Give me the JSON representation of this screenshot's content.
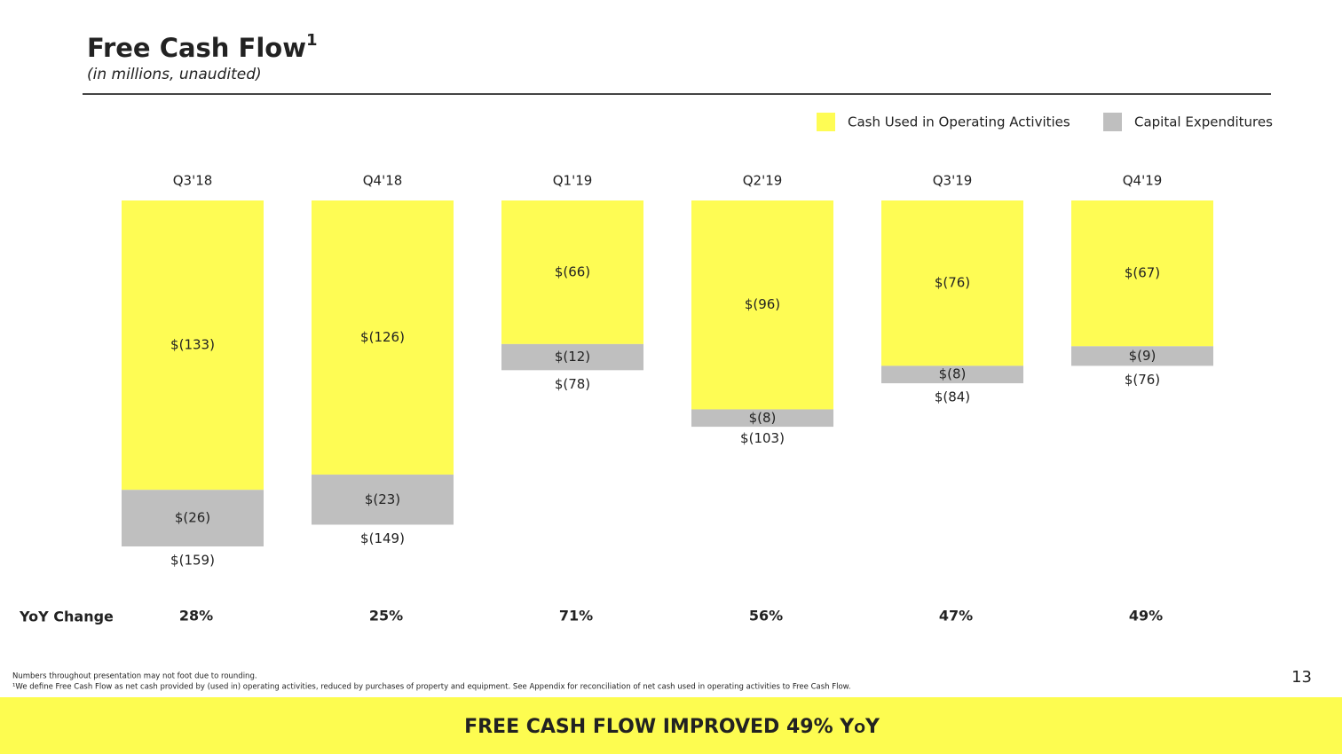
{
  "chart_data": {
    "type": "bar",
    "stacked": true,
    "title": "Free Cash Flow",
    "title_footnote_mark": "1",
    "subtitle": "(in millions, unaudited)",
    "legend": "top-right",
    "categories": [
      "Q3'18",
      "Q4'18",
      "Q1'19",
      "Q2'19",
      "Q3'19",
      "Q4'19"
    ],
    "series": [
      {
        "name": "Cash Used in Operating Activities",
        "color": "#fefc54",
        "values": [
          -133,
          -126,
          -66,
          -96,
          -76,
          -67
        ],
        "value_labels": [
          "$(133)",
          "$(126)",
          "$(66)",
          "$(96)",
          "$(76)",
          "$(67)"
        ]
      },
      {
        "name": "Capital Expenditures",
        "color": "#bfbfbf",
        "values": [
          -26,
          -23,
          -12,
          -8,
          -8,
          -9
        ],
        "value_labels": [
          "$(26)",
          "$(23)",
          "$(12)",
          "$(8)",
          "$(8)",
          "$(9)"
        ]
      }
    ],
    "totals": {
      "values": [
        -159,
        -149,
        -78,
        -103,
        -84,
        -76
      ],
      "value_labels": [
        "$(159)",
        "$(149)",
        "$(78)",
        "$(103)",
        "$(84)",
        "$(76)"
      ]
    },
    "yoy_change": {
      "label": "YoY Change",
      "values": [
        28,
        25,
        71,
        56,
        47,
        49
      ],
      "value_labels": [
        "28%",
        "25%",
        "71%",
        "56%",
        "47%",
        "49%"
      ]
    }
  },
  "footnotes": [
    "Numbers throughout presentation may not foot due to rounding.",
    "¹We define Free Cash Flow as net cash provided by (used in) operating activities, reduced by purchases of property and equipment. See Appendix for reconciliation of net cash used in operating activities to Free Cash Flow."
  ],
  "page_number": "13",
  "banner": "FREE CASH FLOW IMPROVED 49% YoY"
}
